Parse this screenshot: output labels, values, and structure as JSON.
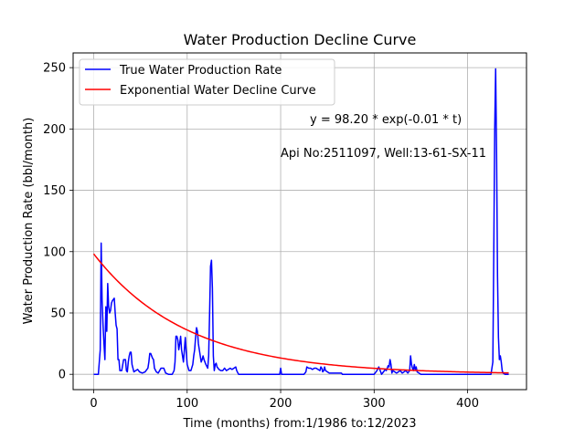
{
  "chart_data": {
    "type": "line",
    "title": "Water Production Decline Curve",
    "xlabel": "Time (months) from:1/1986 to:12/2023",
    "ylabel": "Water Production Rate (bbl/month)",
    "xlim": [
      -22,
      463
    ],
    "ylim": [
      -12.5,
      262
    ],
    "x_ticks": [
      0,
      100,
      200,
      300,
      400
    ],
    "y_ticks": [
      0,
      50,
      100,
      150,
      200,
      250
    ],
    "grid": true,
    "legend_position": "top-left",
    "annotations": [
      "y = 98.20 * exp(-0.01 * t)",
      "Api No:2511097, Well:13-61-SX-11"
    ],
    "series": [
      {
        "name": "True Water Production Rate",
        "color": "#0000ff",
        "points": [
          [
            0,
            0
          ],
          [
            5,
            0
          ],
          [
            7,
            20
          ],
          [
            8,
            107
          ],
          [
            9,
            60
          ],
          [
            10,
            40
          ],
          [
            11,
            25
          ],
          [
            12,
            12
          ],
          [
            13,
            55
          ],
          [
            14,
            35
          ],
          [
            15,
            74
          ],
          [
            16,
            55
          ],
          [
            17,
            50
          ],
          [
            18,
            52
          ],
          [
            19,
            58
          ],
          [
            20,
            60
          ],
          [
            22,
            62
          ],
          [
            23,
            50
          ],
          [
            24,
            40
          ],
          [
            25,
            37
          ],
          [
            26,
            12
          ],
          [
            27,
            12
          ],
          [
            28,
            3
          ],
          [
            30,
            3
          ],
          [
            32,
            12
          ],
          [
            34,
            12
          ],
          [
            35,
            3
          ],
          [
            36,
            2
          ],
          [
            37,
            10
          ],
          [
            38,
            15
          ],
          [
            39,
            18
          ],
          [
            40,
            18
          ],
          [
            41,
            8
          ],
          [
            43,
            2
          ],
          [
            45,
            3
          ],
          [
            47,
            4
          ],
          [
            49,
            2
          ],
          [
            52,
            1
          ],
          [
            55,
            2
          ],
          [
            57,
            4
          ],
          [
            58,
            5
          ],
          [
            59,
            10
          ],
          [
            60,
            17
          ],
          [
            61,
            17
          ],
          [
            63,
            13
          ],
          [
            64,
            12
          ],
          [
            65,
            5
          ],
          [
            67,
            2
          ],
          [
            69,
            1
          ],
          [
            72,
            5
          ],
          [
            75,
            5
          ],
          [
            77,
            1
          ],
          [
            80,
            0
          ],
          [
            84,
            0
          ],
          [
            86,
            3
          ],
          [
            87,
            10
          ],
          [
            88,
            31
          ],
          [
            89,
            31
          ],
          [
            90,
            28
          ],
          [
            91,
            20
          ],
          [
            92,
            25
          ],
          [
            93,
            31
          ],
          [
            94,
            20
          ],
          [
            96,
            10
          ],
          [
            98,
            30
          ],
          [
            99,
            18
          ],
          [
            100,
            8
          ],
          [
            102,
            3
          ],
          [
            104,
            3
          ],
          [
            106,
            8
          ],
          [
            107,
            15
          ],
          [
            108,
            20
          ],
          [
            109,
            30
          ],
          [
            110,
            38
          ],
          [
            111,
            35
          ],
          [
            112,
            25
          ],
          [
            113,
            20
          ],
          [
            114,
            15
          ],
          [
            115,
            10
          ],
          [
            116,
            12
          ],
          [
            117,
            15
          ],
          [
            118,
            12
          ],
          [
            120,
            8
          ],
          [
            122,
            5
          ],
          [
            123,
            15
          ],
          [
            124,
            50
          ],
          [
            125,
            88
          ],
          [
            126,
            93
          ],
          [
            127,
            70
          ],
          [
            128,
            15
          ],
          [
            129,
            3
          ],
          [
            130,
            8
          ],
          [
            131,
            9
          ],
          [
            132,
            6
          ],
          [
            134,
            4
          ],
          [
            136,
            3
          ],
          [
            138,
            3
          ],
          [
            140,
            5
          ],
          [
            142,
            3
          ],
          [
            144,
            4
          ],
          [
            146,
            5
          ],
          [
            148,
            4
          ],
          [
            150,
            5
          ],
          [
            152,
            6
          ],
          [
            153,
            3
          ],
          [
            155,
            0
          ],
          [
            170,
            0
          ],
          [
            190,
            0
          ],
          [
            199,
            0
          ],
          [
            200,
            5
          ],
          [
            201,
            0
          ],
          [
            210,
            0
          ],
          [
            225,
            0
          ],
          [
            227,
            2
          ],
          [
            228,
            6
          ],
          [
            230,
            5
          ],
          [
            232,
            5
          ],
          [
            234,
            4
          ],
          [
            236,
            5
          ],
          [
            238,
            5
          ],
          [
            240,
            4
          ],
          [
            242,
            3
          ],
          [
            243,
            6
          ],
          [
            244,
            5
          ],
          [
            245,
            2
          ],
          [
            246,
            3
          ],
          [
            247,
            6
          ],
          [
            248,
            3
          ],
          [
            250,
            2
          ],
          [
            252,
            1
          ],
          [
            260,
            1
          ],
          [
            265,
            1
          ],
          [
            266,
            0
          ],
          [
            275,
            0
          ],
          [
            290,
            0
          ],
          [
            300,
            0
          ],
          [
            303,
            3
          ],
          [
            305,
            6
          ],
          [
            307,
            2
          ],
          [
            308,
            0
          ],
          [
            310,
            2
          ],
          [
            312,
            4
          ],
          [
            313,
            3
          ],
          [
            314,
            5
          ],
          [
            315,
            7
          ],
          [
            316,
            6
          ],
          [
            317,
            12
          ],
          [
            318,
            8
          ],
          [
            319,
            1
          ],
          [
            320,
            3
          ],
          [
            322,
            2
          ],
          [
            324,
            1
          ],
          [
            326,
            2
          ],
          [
            328,
            3
          ],
          [
            330,
            1
          ],
          [
            332,
            2
          ],
          [
            334,
            3
          ],
          [
            336,
            1
          ],
          [
            338,
            3
          ],
          [
            339,
            15
          ],
          [
            340,
            8
          ],
          [
            341,
            5
          ],
          [
            342,
            3
          ],
          [
            343,
            8
          ],
          [
            344,
            4
          ],
          [
            345,
            6
          ],
          [
            346,
            2
          ],
          [
            348,
            1
          ],
          [
            350,
            0
          ],
          [
            370,
            0
          ],
          [
            390,
            0
          ],
          [
            410,
            0
          ],
          [
            425,
            0
          ],
          [
            427,
            10
          ],
          [
            428,
            100
          ],
          [
            429,
            200
          ],
          [
            430,
            249
          ],
          [
            431,
            180
          ],
          [
            432,
            80
          ],
          [
            433,
            30
          ],
          [
            434,
            12
          ],
          [
            435,
            15
          ],
          [
            436,
            10
          ],
          [
            437,
            3
          ],
          [
            438,
            1
          ],
          [
            440,
            0
          ],
          [
            444,
            0
          ]
        ]
      },
      {
        "name": "Exponential Water Decline Curve",
        "color": "#ff0000",
        "function": {
          "a": 98.2,
          "b": -0.01,
          "x_start": 0,
          "x_end": 444
        }
      }
    ]
  }
}
